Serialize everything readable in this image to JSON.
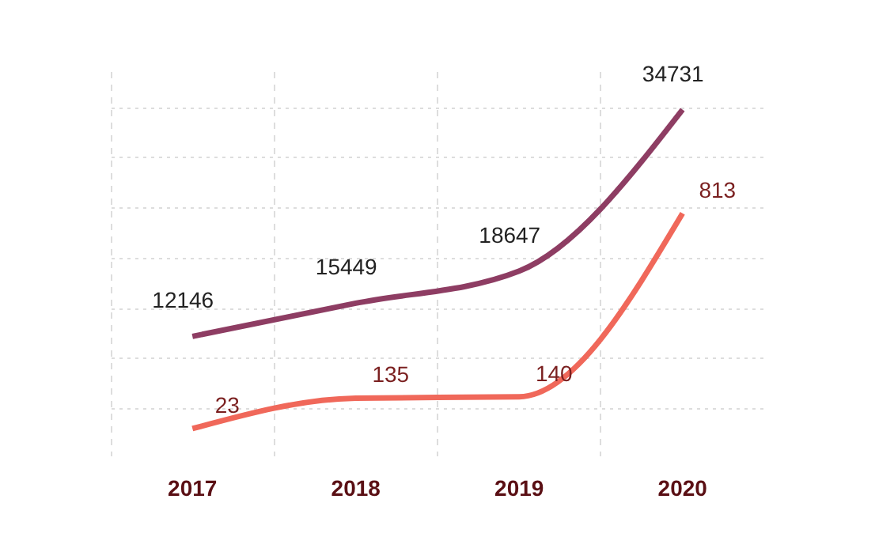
{
  "chart_data": {
    "type": "line",
    "categories": [
      "2017",
      "2018",
      "2019",
      "2020"
    ],
    "series": [
      {
        "color": "#8e3d63",
        "values": [
          12146,
          15449,
          18647,
          34731
        ]
      },
      {
        "color": "#f0685a",
        "values": [
          23,
          135,
          140,
          813
        ],
        "axis": "y2"
      }
    ],
    "data_labels": true,
    "grid": true,
    "tick_labels": "x",
    "marker": "none",
    "line_style": "solid"
  }
}
